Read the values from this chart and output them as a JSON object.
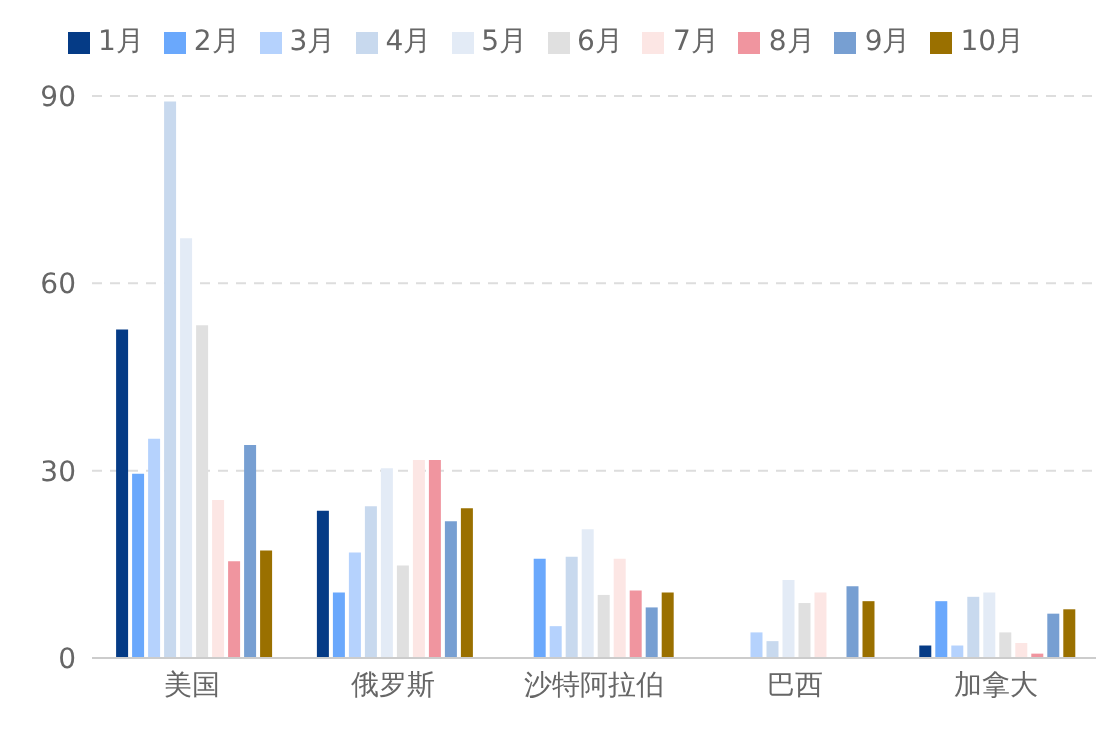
{
  "chart_data": {
    "type": "bar",
    "categories": [
      "美国",
      "俄罗斯",
      "沙特阿拉伯",
      "巴西",
      "加拿大"
    ],
    "series": [
      {
        "name": "1月",
        "color": "#053b86",
        "values": [
          52.6,
          23.6,
          0,
          0,
          2.0
        ]
      },
      {
        "name": "2月",
        "color": "#6aa8fc",
        "values": [
          29.5,
          10.5,
          15.9,
          0,
          9.1
        ]
      },
      {
        "name": "3月",
        "color": "#b5d2fd",
        "values": [
          35.1,
          16.9,
          5.1,
          4.1,
          2.0
        ]
      },
      {
        "name": "4月",
        "color": "#c8d9ee",
        "values": [
          89.1,
          24.3,
          16.2,
          2.7,
          9.8
        ]
      },
      {
        "name": "5月",
        "color": "#e3ebf6",
        "values": [
          67.2,
          30.4,
          20.6,
          12.5,
          10.5
        ]
      },
      {
        "name": "6月",
        "color": "#e0e0e0",
        "values": [
          53.3,
          14.8,
          10.1,
          8.8,
          4.1
        ]
      },
      {
        "name": "7月",
        "color": "#fce6e4",
        "values": [
          25.3,
          31.7,
          15.9,
          10.5,
          2.4
        ]
      },
      {
        "name": "8月",
        "color": "#f0959f",
        "values": [
          15.5,
          31.7,
          10.8,
          0,
          0.7
        ]
      },
      {
        "name": "9月",
        "color": "#779fd2",
        "values": [
          34.1,
          21.9,
          8.1,
          11.5,
          7.1
        ]
      },
      {
        "name": "10月",
        "color": "#9a7000",
        "values": [
          17.2,
          24.0,
          10.5,
          9.1,
          7.8
        ]
      }
    ],
    "ylim": [
      0,
      90
    ],
    "yticks": [
      0,
      30,
      60,
      90
    ],
    "grid": "y",
    "legend": "top"
  }
}
